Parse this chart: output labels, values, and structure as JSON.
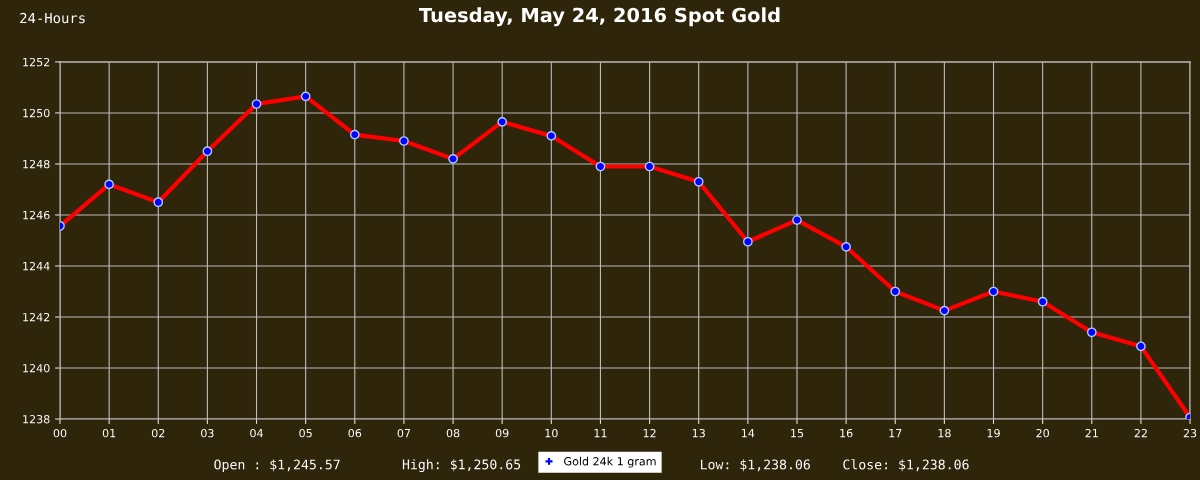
{
  "chart_data": {
    "type": "line",
    "title": "Tuesday, May 24, 2016 Spot Gold",
    "subtitle": "24-Hours",
    "categories": [
      "00",
      "01",
      "02",
      "03",
      "04",
      "05",
      "06",
      "07",
      "08",
      "09",
      "10",
      "11",
      "12",
      "13",
      "14",
      "15",
      "16",
      "17",
      "18",
      "19",
      "20",
      "21",
      "22",
      "23"
    ],
    "series": [
      {
        "name": "Gold 24k 1 gram",
        "color": "#ff0000",
        "values": [
          1245.57,
          1247.2,
          1246.5,
          1248.5,
          1250.35,
          1250.65,
          1249.15,
          1248.9,
          1248.2,
          1249.65,
          1249.1,
          1247.9,
          1247.9,
          1247.3,
          1244.95,
          1245.8,
          1244.75,
          1243.0,
          1242.25,
          1243.0,
          1242.6,
          1241.4,
          1240.85,
          1238.06
        ]
      }
    ],
    "ylim": [
      1238,
      1252
    ],
    "yticks": [
      1238,
      1240,
      1242,
      1244,
      1246,
      1248,
      1250,
      1252
    ],
    "grid": true,
    "legend": "bottom",
    "marker": "circle",
    "line_style": "solid",
    "annotations": [
      "Open : $1,245.57",
      "High: $1,250.65",
      "Low: $1,238.06",
      "Close: $1,238.06"
    ]
  }
}
